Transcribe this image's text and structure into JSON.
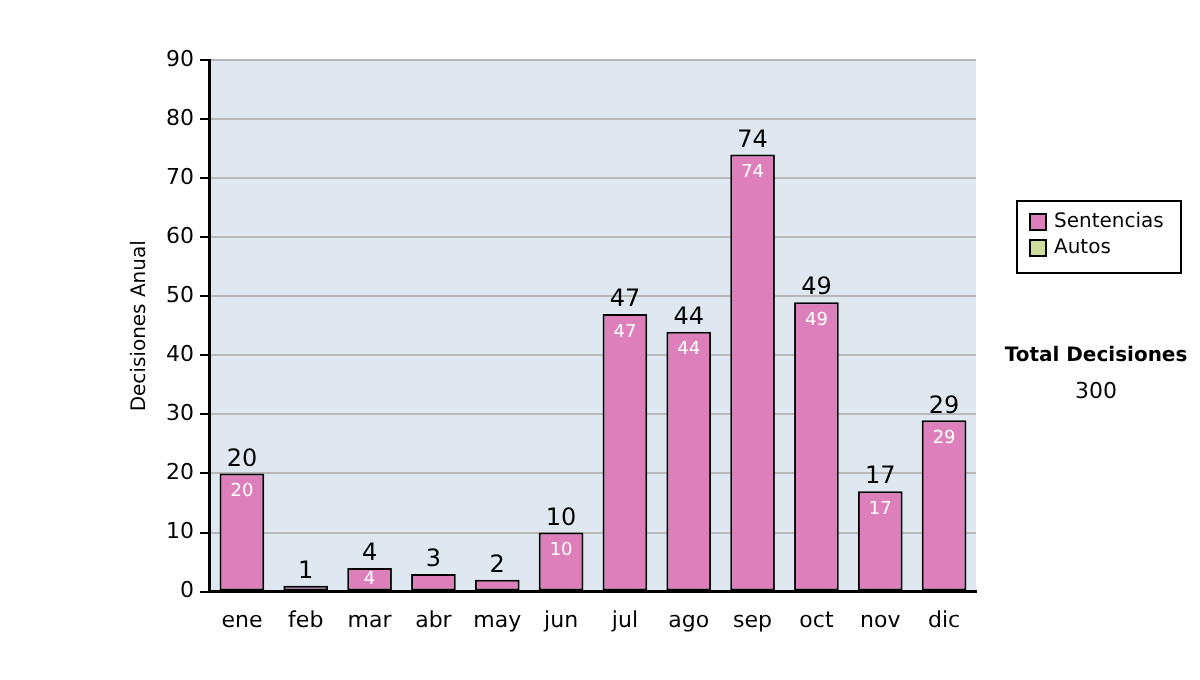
{
  "chart_data": {
    "type": "bar",
    "ylabel": "Decisiones Anual",
    "categories": [
      "ene",
      "feb",
      "mar",
      "abr",
      "may",
      "jun",
      "jul",
      "ago",
      "sep",
      "oct",
      "nov",
      "dic"
    ],
    "stacked": true,
    "series": [
      {
        "name": "Sentencias",
        "color": "#dd7fbb",
        "values": [
          20,
          1,
          4,
          3,
          2,
          10,
          47,
          44,
          74,
          49,
          17,
          29
        ],
        "value_labels": [
          "20",
          null,
          "4",
          null,
          null,
          "10",
          "47",
          "44",
          "74",
          "49",
          "17",
          "29"
        ]
      },
      {
        "name": "Autos",
        "color": "#ccdd99",
        "values": [
          0,
          0,
          0,
          0,
          0,
          0,
          0,
          0,
          0,
          0,
          0,
          0
        ]
      }
    ],
    "totals": [
      "20",
      "1",
      "4",
      "3",
      "2",
      "10",
      "47",
      "44",
      "74",
      "49",
      "17",
      "29"
    ],
    "ylim": [
      0,
      90
    ],
    "yticks": [
      0,
      10,
      20,
      30,
      40,
      50,
      60,
      70,
      80,
      90
    ],
    "grid": "y",
    "legend": "right",
    "annotations": [
      "Total Decisiones",
      "300"
    ]
  }
}
